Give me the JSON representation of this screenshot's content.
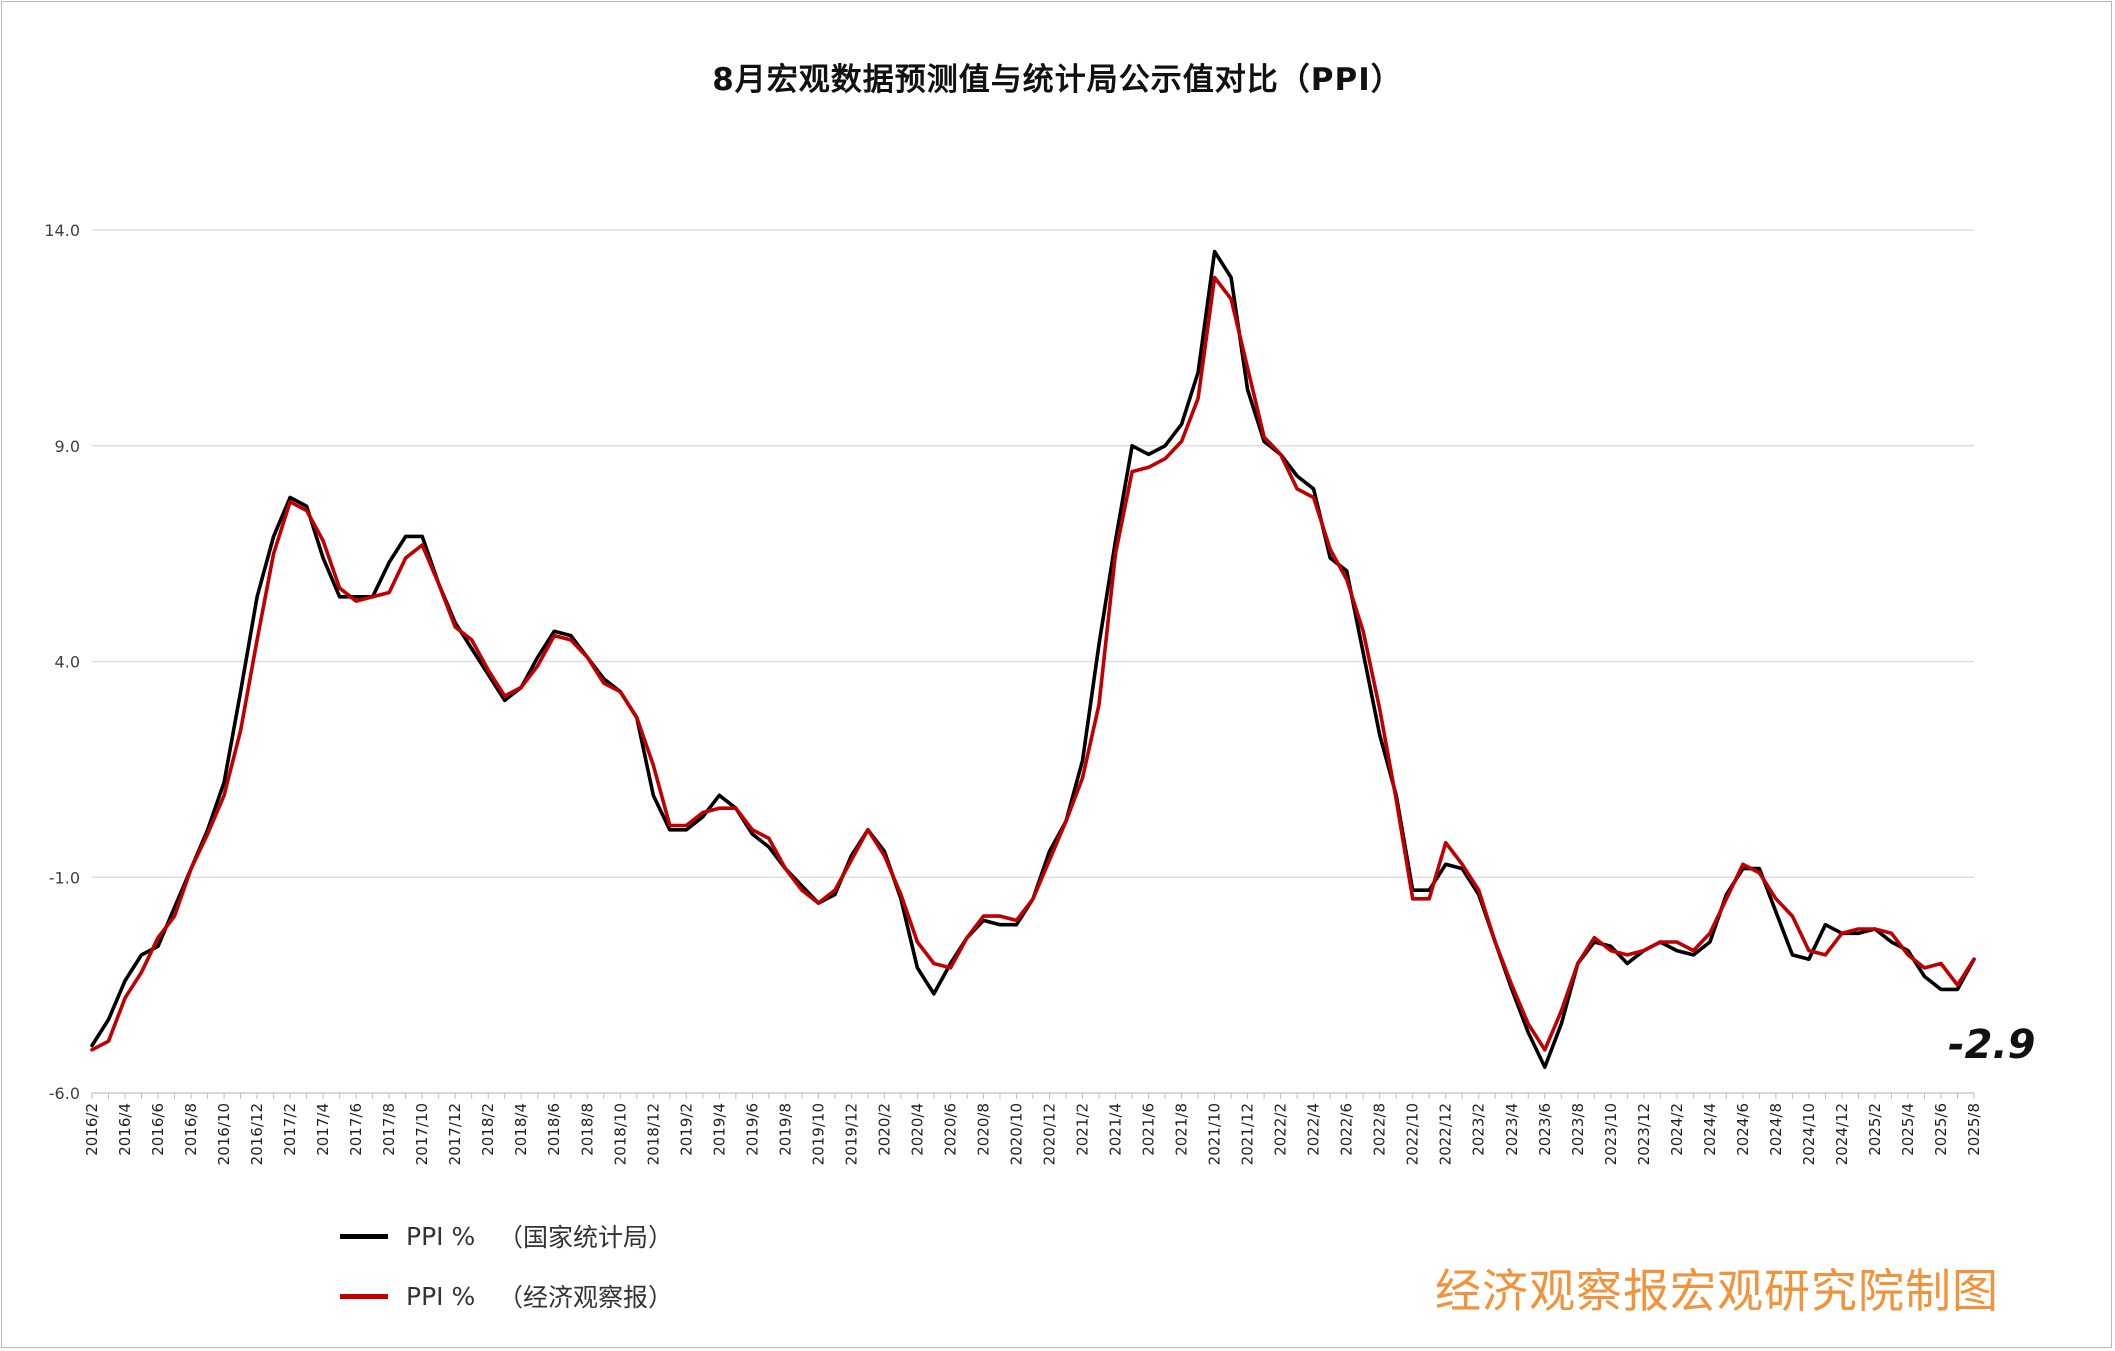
{
  "chart_data": {
    "type": "line",
    "title": "8月宏观数据预测值与统计局公示值对比（PPI）",
    "ylim": [
      -6.0,
      14.0
    ],
    "yticks": [
      "14.0",
      "9.0",
      "4.0",
      "-1.0",
      "-6.0"
    ],
    "grid": true,
    "legend_position": "bottom-left",
    "x": [
      "2016/2",
      "2016/3",
      "2016/4",
      "2016/5",
      "2016/6",
      "2016/7",
      "2016/8",
      "2016/9",
      "2016/10",
      "2016/11",
      "2016/12",
      "2017/1",
      "2017/2",
      "2017/3",
      "2017/4",
      "2017/5",
      "2017/6",
      "2017/7",
      "2017/8",
      "2017/9",
      "2017/10",
      "2017/11",
      "2017/12",
      "2018/1",
      "2018/2",
      "2018/3",
      "2018/4",
      "2018/5",
      "2018/6",
      "2018/7",
      "2018/8",
      "2018/9",
      "2018/10",
      "2018/11",
      "2018/12",
      "2019/1",
      "2019/2",
      "2019/3",
      "2019/4",
      "2019/5",
      "2019/6",
      "2019/7",
      "2019/8",
      "2019/9",
      "2019/10",
      "2019/11",
      "2019/12",
      "2020/1",
      "2020/2",
      "2020/3",
      "2020/4",
      "2020/5",
      "2020/6",
      "2020/7",
      "2020/8",
      "2020/9",
      "2020/10",
      "2020/11",
      "2020/12",
      "2021/1",
      "2021/2",
      "2021/3",
      "2021/4",
      "2021/5",
      "2021/6",
      "2021/7",
      "2021/8",
      "2021/9",
      "2021/10",
      "2021/11",
      "2021/12",
      "2022/1",
      "2022/2",
      "2022/3",
      "2022/4",
      "2022/5",
      "2022/6",
      "2022/7",
      "2022/8",
      "2022/9",
      "2022/10",
      "2022/11",
      "2022/12",
      "2023/1",
      "2023/2",
      "2023/3",
      "2023/4",
      "2023/5",
      "2023/6",
      "2023/7",
      "2023/8",
      "2023/9",
      "2023/10",
      "2023/11",
      "2023/12",
      "2024/1",
      "2024/2",
      "2024/3",
      "2024/4",
      "2024/5",
      "2024/6",
      "2024/7",
      "2024/8",
      "2024/9",
      "2024/10",
      "2024/11",
      "2024/12",
      "2025/1",
      "2025/2",
      "2025/3",
      "2025/4",
      "2025/5",
      "2025/6",
      "2025/7",
      "2025/8"
    ],
    "x_tick_labels": [
      "2016/2",
      "2016/4",
      "2016/6",
      "2016/8",
      "2016/10",
      "2016/12",
      "2017/2",
      "2017/4",
      "2017/6",
      "2017/8",
      "2017/10",
      "2017/12",
      "2018/2",
      "2018/4",
      "2018/6",
      "2018/8",
      "2018/10",
      "2018/12",
      "2019/2",
      "2019/4",
      "2019/6",
      "2019/8",
      "2019/10",
      "2019/12",
      "2020/2",
      "2020/4",
      "2020/6",
      "2020/8",
      "2020/10",
      "2020/12",
      "2021/2",
      "2021/4",
      "2021/6",
      "2021/8",
      "2021/10",
      "2021/12",
      "2022/2",
      "2022/4",
      "2022/6",
      "2022/8",
      "2022/10",
      "2022/12",
      "2023/2",
      "2023/4",
      "2023/6",
      "2023/8",
      "2023/10",
      "2023/12",
      "2024/2",
      "2024/4",
      "2024/6",
      "2024/8",
      "2024/10",
      "2024/12",
      "2025/2",
      "2025/4",
      "2025/6",
      "2025/8"
    ],
    "series": [
      {
        "name": "PPI    %",
        "source": "（国家统计局）",
        "color": "#000000",
        "values": [
          -4.9,
          -4.3,
          -3.4,
          -2.8,
          -2.6,
          -1.7,
          -0.8,
          0.1,
          1.2,
          3.3,
          5.5,
          6.9,
          7.8,
          7.6,
          6.4,
          5.5,
          5.5,
          5.5,
          6.3,
          6.9,
          6.9,
          5.8,
          4.9,
          4.3,
          3.7,
          3.1,
          3.4,
          4.1,
          4.7,
          4.6,
          4.1,
          3.6,
          3.3,
          2.7,
          0.9,
          0.1,
          0.1,
          0.4,
          0.9,
          0.6,
          0.0,
          -0.3,
          -0.8,
          -1.2,
          -1.6,
          -1.4,
          -0.5,
          0.1,
          -0.4,
          -1.5,
          -3.1,
          -3.7,
          -3.0,
          -2.4,
          -2.0,
          -2.1,
          -2.1,
          -1.5,
          -0.4,
          0.3,
          1.7,
          4.4,
          6.8,
          9.0,
          8.8,
          9.0,
          9.5,
          10.7,
          13.5,
          12.9,
          10.3,
          9.1,
          8.8,
          8.3,
          8.0,
          6.4,
          6.1,
          4.2,
          2.3,
          0.9,
          -1.3,
          -1.3,
          -0.7,
          -0.8,
          -1.4,
          -2.5,
          -3.6,
          -4.6,
          -5.4,
          -4.4,
          -3.0,
          -2.5,
          -2.6,
          -3.0,
          -2.7,
          -2.5,
          -2.7,
          -2.8,
          -2.5,
          -1.4,
          -0.8,
          -0.8,
          -1.8,
          -2.8,
          -2.9,
          -2.1,
          -2.3,
          -2.3,
          -2.2,
          -2.5,
          -2.7,
          -3.3,
          -3.6,
          -3.6,
          -2.9
        ]
      },
      {
        "name": "PPI    %",
        "source": "（经济观察报）",
        "color": "#c00000",
        "values": [
          -5.0,
          -4.8,
          -3.8,
          -3.2,
          -2.4,
          -1.9,
          -0.8,
          0.0,
          0.9,
          2.4,
          4.5,
          6.5,
          7.7,
          7.5,
          6.8,
          5.7,
          5.4,
          5.5,
          5.6,
          6.4,
          6.7,
          5.8,
          4.8,
          4.5,
          3.8,
          3.2,
          3.4,
          3.9,
          4.6,
          4.5,
          4.1,
          3.5,
          3.3,
          2.7,
          1.6,
          0.2,
          0.2,
          0.5,
          0.6,
          0.6,
          0.1,
          -0.1,
          -0.8,
          -1.3,
          -1.6,
          -1.3,
          -0.6,
          0.1,
          -0.5,
          -1.4,
          -2.5,
          -3.0,
          -3.1,
          -2.4,
          -1.9,
          -1.9,
          -2.0,
          -1.5,
          -0.6,
          0.3,
          1.3,
          3.0,
          6.5,
          8.4,
          8.5,
          8.7,
          9.1,
          10.1,
          12.9,
          12.4,
          10.8,
          9.2,
          8.8,
          8.0,
          7.8,
          6.6,
          5.9,
          4.7,
          2.9,
          0.8,
          -1.5,
          -1.5,
          -0.2,
          -0.7,
          -1.3,
          -2.5,
          -3.5,
          -4.4,
          -5.0,
          -4.1,
          -3.0,
          -2.4,
          -2.7,
          -2.8,
          -2.7,
          -2.5,
          -2.5,
          -2.7,
          -2.3,
          -1.5,
          -0.7,
          -0.9,
          -1.5,
          -1.9,
          -2.7,
          -2.8,
          -2.3,
          -2.2,
          -2.2,
          -2.3,
          -2.8,
          -3.1,
          -3.0,
          -3.5,
          -2.9
        ]
      }
    ],
    "annotations": [
      {
        "text": "-2.9"
      }
    ],
    "watermark": "经济观察报宏观研究院制图"
  }
}
